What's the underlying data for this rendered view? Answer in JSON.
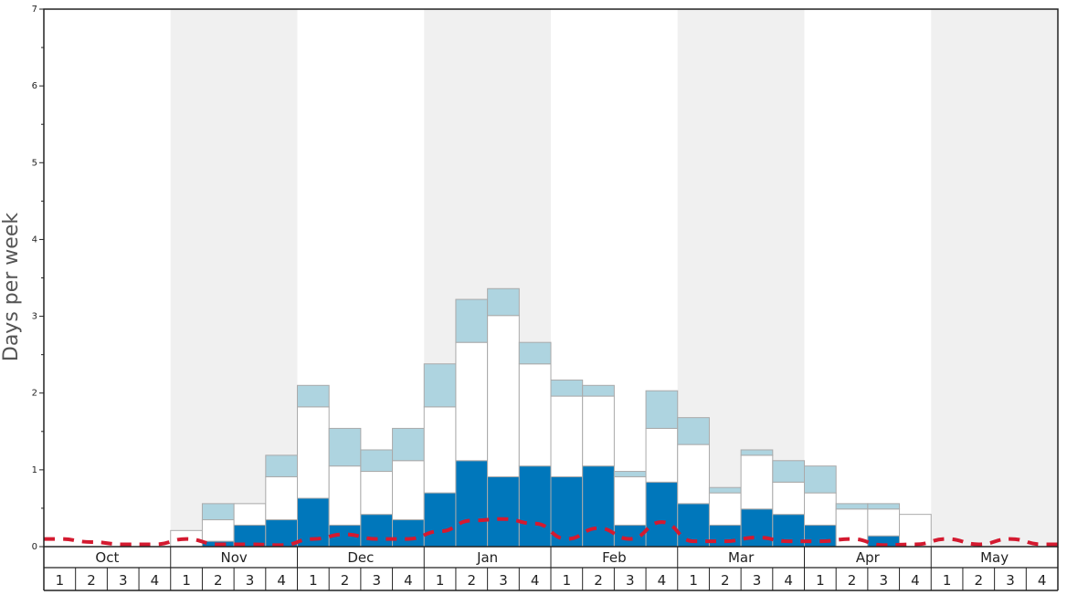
{
  "chart_data": {
    "type": "bar",
    "ylabel": "Days per week",
    "ylim": [
      0,
      7
    ],
    "y_ticks": [
      "0",
      "1",
      "2",
      "3",
      "4",
      "5",
      "6",
      "7"
    ],
    "months": [
      "Oct",
      "Nov",
      "Dec",
      "Jan",
      "Feb",
      "Mar",
      "Apr",
      "May"
    ],
    "week_labels": [
      "1",
      "2",
      "3",
      "4"
    ],
    "shaded_months": [
      "Nov",
      "Jan",
      "Mar",
      "May"
    ],
    "colors": {
      "dark": "#0077bb",
      "mid": "#ffffff",
      "light": "#aed4e0",
      "line": "#d41a30",
      "shade": "#f0f0f0",
      "bar_border": "#aaaaaa"
    },
    "series": [
      {
        "key": "dark",
        "values": [
          0,
          0,
          0,
          0,
          0,
          0.07,
          0.28,
          0.35,
          0.63,
          0.28,
          0.42,
          0.35,
          0.7,
          1.12,
          0.91,
          1.05,
          0.91,
          1.05,
          0.28,
          0.84,
          0.56,
          0.28,
          0.49,
          0.42,
          0.28,
          0,
          0.14,
          0,
          0,
          0,
          0,
          0
        ]
      },
      {
        "key": "mid",
        "values": [
          0,
          0,
          0,
          0,
          0.21,
          0.28,
          0.28,
          0.56,
          1.19,
          0.77,
          0.56,
          0.77,
          1.12,
          1.54,
          2.1,
          1.33,
          1.05,
          0.91,
          0.63,
          0.7,
          0.77,
          0.42,
          0.7,
          0.42,
          0.42,
          0.49,
          0.35,
          0.42,
          0,
          0,
          0,
          0
        ]
      },
      {
        "key": "light",
        "values": [
          0,
          0,
          0,
          0,
          0,
          0.21,
          0,
          0.28,
          0.28,
          0.49,
          0.28,
          0.42,
          0.56,
          0.56,
          0.35,
          0.28,
          0.21,
          0.14,
          0.07,
          0.49,
          0.35,
          0.07,
          0.07,
          0.28,
          0.35,
          0.07,
          0.07,
          0,
          0,
          0,
          0,
          0
        ]
      },
      {
        "key": "line",
        "values": [
          0.1,
          0.06,
          0.03,
          0.03,
          0.1,
          0.03,
          0.03,
          0.02,
          0.1,
          0.16,
          0.1,
          0.1,
          0.2,
          0.34,
          0.36,
          0.3,
          0.1,
          0.24,
          0.1,
          0.32,
          0.07,
          0.07,
          0.12,
          0.07,
          0.07,
          0.1,
          0.02,
          0.03,
          0.1,
          0.03,
          0.1,
          0.03
        ]
      }
    ]
  }
}
